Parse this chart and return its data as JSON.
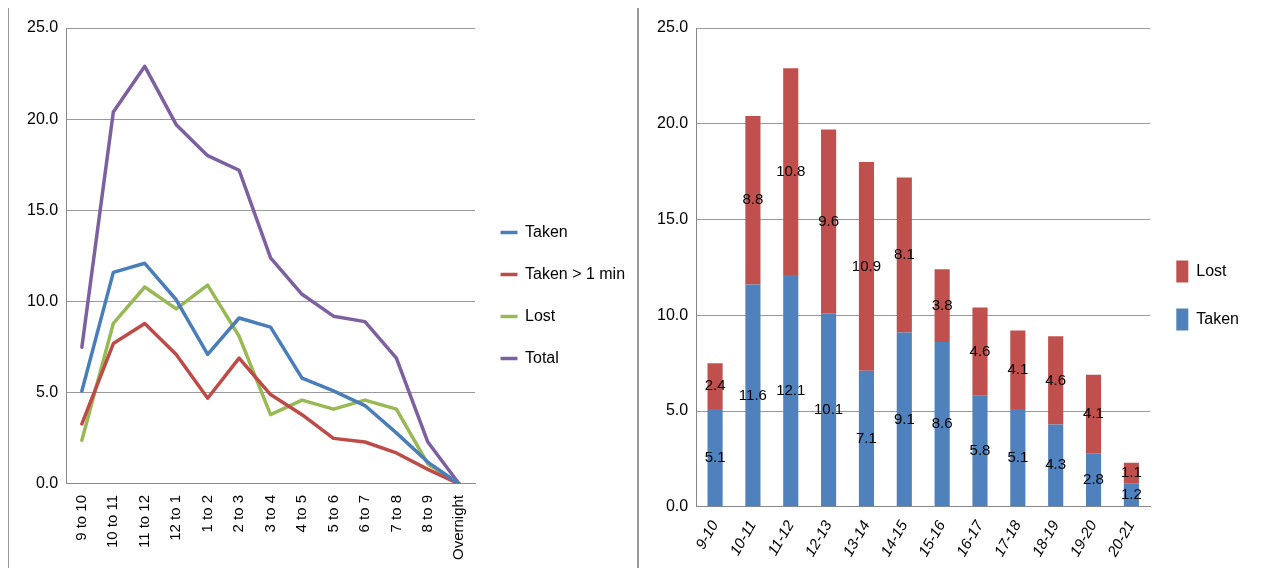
{
  "chart_data": [
    {
      "type": "line",
      "categories": [
        "9 to 10",
        "10 to 11",
        "11 to 12",
        "12 to 1",
        "1 to 2",
        "2 to 3",
        "3 to 4",
        "4 to 5",
        "5 to 6",
        "6 to 7",
        "7 to 8",
        "8 to 9",
        "Overnight"
      ],
      "series": [
        {
          "name": "Taken",
          "color": "#4a7ebb",
          "values": [
            5.1,
            11.6,
            12.1,
            10.1,
            7.1,
            9.1,
            8.6,
            5.8,
            5.1,
            4.3,
            2.8,
            1.2,
            0
          ]
        },
        {
          "name": "Taken > 1 min",
          "color": "#be4b48",
          "values": [
            3.3,
            7.7,
            8.8,
            7.1,
            4.7,
            6.9,
            4.9,
            3.8,
            2.5,
            2.3,
            1.7,
            0.8,
            0
          ]
        },
        {
          "name": "Lost",
          "color": "#98b954",
          "values": [
            2.4,
            8.8,
            10.8,
            9.6,
            10.9,
            8.1,
            3.8,
            4.6,
            4.1,
            4.6,
            4.1,
            1.1,
            0
          ]
        },
        {
          "name": "Total",
          "color": "#7d60a0",
          "values": [
            7.5,
            20.4,
            22.9,
            19.7,
            18.0,
            17.2,
            12.4,
            10.4,
            9.2,
            8.9,
            6.9,
            2.3,
            0
          ]
        }
      ],
      "ylim": [
        0,
        25
      ],
      "yticks": [
        {
          "value": 0,
          "label": "0.0"
        },
        {
          "value": 5,
          "label": "5.0"
        },
        {
          "value": 10,
          "label": "10.0"
        },
        {
          "value": 15,
          "label": "15.0"
        },
        {
          "value": 20,
          "label": "20.0"
        },
        {
          "value": 25,
          "label": "25.0"
        }
      ],
      "grid": "y",
      "legend": "right",
      "marker": "none",
      "line_style": "solid"
    },
    {
      "type": "bar",
      "stacked": true,
      "data_labels": true,
      "categories": [
        "9-10",
        "10-11",
        "11-12",
        "12-13",
        "13-14",
        "14-15",
        "15-16",
        "16-17",
        "17-18",
        "18-19",
        "19-20",
        "20-21"
      ],
      "series": [
        {
          "name": "Taken",
          "color": "#4f81bd",
          "values": [
            5.1,
            11.6,
            12.1,
            10.1,
            7.1,
            9.1,
            8.6,
            5.8,
            5.1,
            4.3,
            2.8,
            1.2
          ]
        },
        {
          "name": "Lost",
          "color": "#c0504d",
          "values": [
            2.4,
            8.8,
            10.8,
            9.6,
            10.9,
            8.1,
            3.8,
            4.6,
            4.1,
            4.6,
            4.1,
            1.1
          ]
        }
      ],
      "ylim": [
        0,
        25
      ],
      "yticks": [
        {
          "value": 0,
          "label": "0.0"
        },
        {
          "value": 5,
          "label": "5.0"
        },
        {
          "value": 10,
          "label": "10.0"
        },
        {
          "value": 15,
          "label": "15.0"
        },
        {
          "value": 20,
          "label": "20.0"
        },
        {
          "value": 25,
          "label": "25.0"
        }
      ],
      "grid": "y",
      "legend": "right"
    }
  ]
}
